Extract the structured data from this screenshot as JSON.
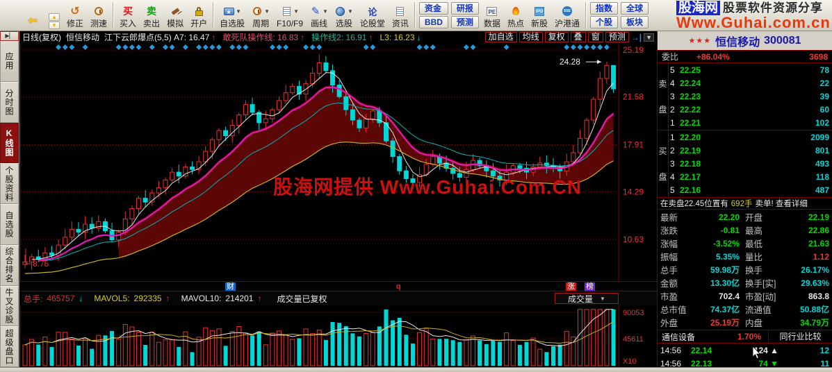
{
  "watermark_top": {
    "brand": "股海网",
    "tagline": "股票软件资源分享",
    "url": "Www.Guhai.com.cn"
  },
  "watermark_chart": "股海网提供 Www.Guhai.Com.CN",
  "toolbar": {
    "groups": [
      {
        "items": [
          {
            "icon": "app-logo",
            "label": ""
          },
          {
            "icon": "back-arrow",
            "label": ""
          },
          {
            "icon": "updown-arrows",
            "label": ""
          },
          {
            "icon": "undo",
            "label": "修正"
          },
          {
            "icon": "clock",
            "label": "测速"
          }
        ],
        "stacks": []
      },
      {
        "items": [
          {
            "icon": "buy-char",
            "label": "买入"
          },
          {
            "icon": "sell-char",
            "label": "卖出"
          },
          {
            "icon": "gavel",
            "label": "模拟"
          },
          {
            "icon": "lock",
            "label": "开户"
          }
        ],
        "stacks": []
      },
      {
        "items": [
          {
            "icon": "folder-star",
            "label": "自选股",
            "dropdown": true
          },
          {
            "icon": "clock",
            "label": "周期",
            "dropdown": true
          },
          {
            "icon": "doc",
            "label": "F10/F9",
            "dropdown": true
          },
          {
            "icon": "pencil",
            "label": "画线",
            "dropdown": true
          },
          {
            "icon": "globe",
            "label": "选股",
            "dropdown": true
          },
          {
            "icon": "forum",
            "label": "论股堂"
          },
          {
            "icon": "doc",
            "label": "资讯"
          }
        ],
        "stacks": []
      },
      {
        "items": [
          {
            "icon": "pe-badge",
            "label": "数据"
          },
          {
            "icon": "flame",
            "label": "热点"
          },
          {
            "icon": "ipo-badge",
            "label": "新股"
          },
          {
            "icon": "hgt-badge",
            "label": "沪港通"
          }
        ],
        "stacks": [
          [
            "资金",
            "BBD"
          ],
          [
            "研报",
            "预测"
          ]
        ]
      },
      {
        "items": [],
        "stacks": [
          [
            "指数",
            "个股"
          ],
          [
            "全球",
            "板块"
          ]
        ]
      }
    ]
  },
  "sidebar": {
    "collapse_icon": "▶▏",
    "items": [
      "应用",
      "分时图",
      "K线图",
      "个股资料",
      "自选股",
      "综合排名",
      "牛叉诊股",
      "超级盘口"
    ],
    "active_index": 2
  },
  "chart_header": {
    "period": "日线(复权)",
    "stock": "恒信移动",
    "indicators": [
      {
        "label": "江下云郎爆点(5,5) A7:",
        "value": "16.47",
        "dir": "up",
        "color": "#e8e8e8"
      },
      {
        "label": "敢死队操作线:",
        "value": "16.83",
        "dir": "up",
        "color": "#e0506c"
      },
      {
        "label": "操作线2:",
        "value": "16.91",
        "dir": "up",
        "color": "#28b098"
      },
      {
        "label": "L3:",
        "value": "16.23",
        "dir": "down",
        "color": "#d8d028"
      }
    ],
    "buttons": [
      "加自选",
      "均线",
      "复权",
      "叠",
      "窗",
      "预测"
    ],
    "jump_icon": "→|",
    "dropdown_icon": "▼"
  },
  "chart": {
    "peak_label": "24.28",
    "low_label": "8.75",
    "markers": {
      "cai": "财",
      "q": "q",
      "zhang": "涨",
      "bang": "榜"
    }
  },
  "chart_data": {
    "type": "candlestick",
    "y_gridlines": [
      25.19,
      21.58,
      17.91,
      14.29,
      10.63
    ],
    "y_labels": [
      "25.19",
      "21.58",
      "17.91",
      "14.29",
      "10.63"
    ],
    "closes": [
      8.9,
      9.3,
      9.1,
      9.6,
      9.4,
      10.2,
      10.8,
      11.4,
      11.2,
      11.8,
      11.5,
      12.0,
      11.3,
      10.6,
      11.2,
      12.2,
      13.0,
      13.8,
      13.5,
      14.2,
      14.6,
      15.2,
      15.8,
      15.5,
      16.2,
      16.0,
      16.6,
      17.4,
      18.3,
      19.0,
      18.6,
      19.4,
      20.2,
      21.0,
      20.4,
      19.6,
      19.9,
      20.6,
      21.3,
      21.9,
      22.4,
      21.8,
      22.6,
      23.4,
      24.2,
      23.6,
      22.5,
      21.6,
      20.6,
      19.8,
      19.2,
      19.9,
      20.5,
      19.6,
      18.2,
      17.0,
      15.9,
      15.3,
      15.0,
      15.6,
      16.4,
      17.0,
      16.5,
      16.1,
      15.7,
      15.4,
      16.0,
      16.7,
      16.3,
      15.9,
      15.5,
      15.2,
      15.8,
      16.3,
      16.1,
      15.8,
      16.2,
      16.5,
      16.3,
      16.1,
      15.9,
      16.6,
      17.3,
      18.4,
      19.8,
      21.4,
      23.0,
      24.0,
      22.2
    ],
    "peak_annotation": {
      "value": "24.28",
      "index": 87
    },
    "low_annotation": {
      "value": "8.75"
    }
  },
  "volume_header": {
    "zongshou_label": "总手:",
    "zongshou_value": "465757",
    "zongshou_dir": "down",
    "mavol5_label": "MAVOL5:",
    "mavol5_value": "292335",
    "mavol5_dir": "up",
    "mavol10_label": "MAVOL10:",
    "mavol10_value": "214201",
    "mavol10_dir": "up",
    "note": "成交量已复权",
    "dropdown_label": "成交量"
  },
  "volume_axis": {
    "top": "90053",
    "mid": "45611",
    "unit": "X10"
  },
  "quote": {
    "stars": "★★★",
    "name": "恒信移动",
    "code": "300081",
    "weibi_label": "委比",
    "weibi_value": "+86.04%",
    "weicha_value": "3698",
    "sell_label": "卖盘",
    "buy_label": "买盘",
    "asks": [
      {
        "level": "5",
        "price": "22.25",
        "vol": "78"
      },
      {
        "level": "4",
        "price": "22.24",
        "vol": "22"
      },
      {
        "level": "3",
        "price": "22.23",
        "vol": "39"
      },
      {
        "level": "2",
        "price": "22.22",
        "vol": "60"
      },
      {
        "level": "1",
        "price": "22.21",
        "vol": "102"
      }
    ],
    "bids": [
      {
        "level": "1",
        "price": "22.20",
        "vol": "2099"
      },
      {
        "level": "2",
        "price": "22.19",
        "vol": "801"
      },
      {
        "level": "3",
        "price": "22.18",
        "vol": "493"
      },
      {
        "level": "4",
        "price": "22.17",
        "vol": "118"
      },
      {
        "level": "5",
        "price": "22.16",
        "vol": "487"
      }
    ],
    "notice_pre": "在卖盘22.45位置有",
    "notice_hands": "692手",
    "notice_post": "卖单! 查看详细",
    "stats": [
      {
        "l1": "最新",
        "v1": "22.20",
        "c1": "green",
        "l2": "开盘",
        "v2": "22.19",
        "c2": "green"
      },
      {
        "l1": "涨跌",
        "v1": "-0.81",
        "c1": "green",
        "l2": "最高",
        "v2": "22.86",
        "c2": "green"
      },
      {
        "l1": "涨幅",
        "v1": "-3.52%",
        "c1": "green",
        "l2": "最低",
        "v2": "21.63",
        "c2": "green"
      },
      {
        "l1": "振幅",
        "v1": "5.35%",
        "c1": "cyan",
        "l2": "量比",
        "v2": "1.12",
        "c2": "red"
      },
      {
        "l1": "总手",
        "v1": "59.98万",
        "c1": "cyan",
        "l2": "换手",
        "v2": "26.17%",
        "c2": "cyan"
      },
      {
        "l1": "金额",
        "v1": "13.30亿",
        "c1": "cyan",
        "l2": "换手[实]",
        "v2": "29.63%",
        "c2": "cyan"
      },
      {
        "l1": "市盈",
        "v1": "702.4",
        "c1": "white",
        "l2": "市盈[动]",
        "v2": "863.8",
        "c2": "white"
      },
      {
        "l1": "总市值",
        "v1": "74.37亿",
        "c1": "cyan",
        "l2": "流通值",
        "v2": "50.88亿",
        "c2": "cyan"
      },
      {
        "l1": "外盘",
        "v1": "25.19万",
        "c1": "red",
        "l2": "内盘",
        "v2": "34.79万",
        "c2": "green"
      }
    ],
    "sector": {
      "name": "通信设备",
      "pct": "1.70%",
      "compare": "同行业比较"
    },
    "ticks": [
      {
        "time": "14:56",
        "price": "22.14",
        "vol": "124",
        "dir": "up",
        "extra": "12"
      },
      {
        "time": "14:56",
        "price": "22.13",
        "vol": "74",
        "dir": "down",
        "extra": "11"
      }
    ]
  }
}
